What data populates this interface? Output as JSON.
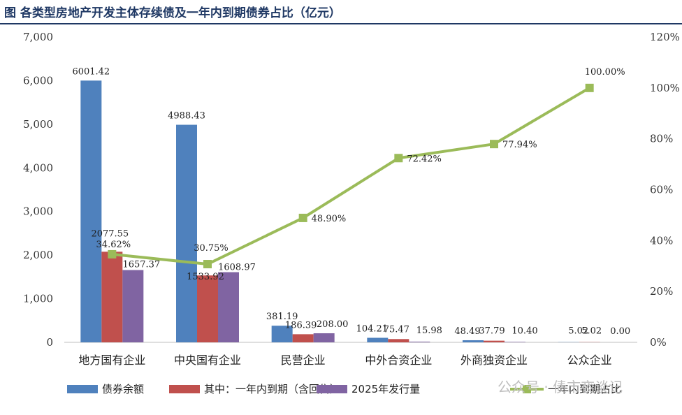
{
  "title": "图 各类型房地产开发主体存续债及一年内到期债券占比（亿元）",
  "watermark": "公众号 · 债市夜谈记",
  "chart_data": {
    "type": "bar+line",
    "categories": [
      "地方国有企业",
      "中央国有企业",
      "民营企业",
      "中外合资企业",
      "外商独资企业",
      "公众企业"
    ],
    "series": [
      {
        "name": "债券余额",
        "kind": "bar",
        "axis": "left",
        "color": "#4f81bd",
        "values": [
          6001.42,
          4988.43,
          381.19,
          104.21,
          48.49,
          5.02
        ],
        "labels": [
          "6001.42",
          "4988.43",
          "381.19",
          "104.21",
          "48.49",
          "5.02"
        ]
      },
      {
        "name": "其中：一年内到期（含回售）",
        "kind": "bar",
        "axis": "left",
        "color": "#c0504d",
        "values": [
          2077.55,
          1533.92,
          186.39,
          75.47,
          37.79,
          5.02
        ],
        "labels": [
          "2077.55",
          "1533.92",
          "186.39",
          "75.47",
          "37.79",
          "5.02"
        ]
      },
      {
        "name": "2025年发行量",
        "kind": "bar",
        "axis": "left",
        "color": "#8064a2",
        "values": [
          1657.37,
          1608.97,
          208.0,
          15.98,
          10.4,
          0.0
        ],
        "labels": [
          "1657.37",
          "1608.97",
          "208.00",
          "15.98",
          "10.40",
          "0.00"
        ]
      },
      {
        "name": "一年内到期占比",
        "kind": "line",
        "axis": "right",
        "color": "#9bbb59",
        "values": [
          34.62,
          30.75,
          48.9,
          72.42,
          77.94,
          100.0
        ],
        "labels": [
          "34.62%",
          "30.75%",
          "48.90%",
          "72.42%",
          "77.94%",
          "100.00%"
        ]
      }
    ],
    "left_axis": {
      "min": 0,
      "max": 7000,
      "step": 1000,
      "tick_labels": [
        "0",
        "1,000",
        "2,000",
        "3,000",
        "4,000",
        "5,000",
        "6,000",
        "7,000"
      ]
    },
    "right_axis": {
      "min": 0,
      "max": 120,
      "step": 20,
      "tick_labels": [
        "0%",
        "20%",
        "40%",
        "60%",
        "80%",
        "100%",
        "120%"
      ]
    },
    "legend_position": "bottom"
  }
}
